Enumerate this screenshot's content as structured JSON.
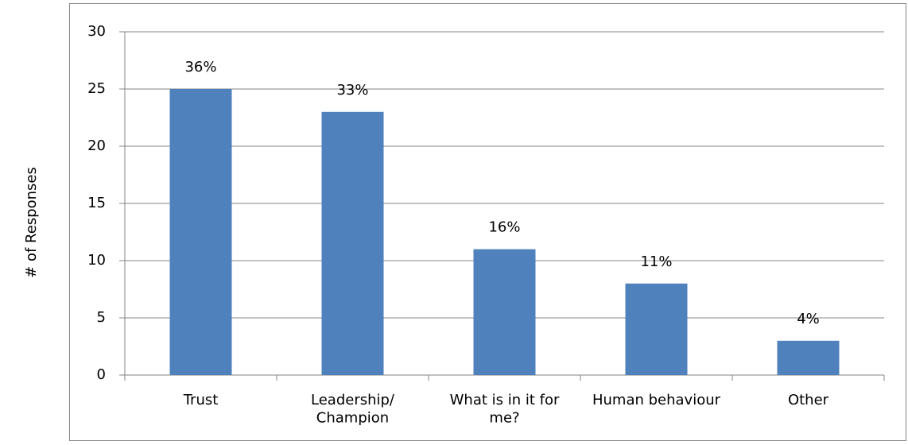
{
  "chart_data": {
    "type": "bar",
    "y_label": "# of Responses",
    "categories": [
      "Trust",
      "Leadership/\nChampion",
      "What is in it for\nme?",
      "Human behaviour",
      "Other"
    ],
    "values": [
      25,
      23,
      11,
      8,
      3
    ],
    "annotations": [
      "36%",
      "33%",
      "16%",
      "11%",
      "4%"
    ],
    "color": "#4f81bd",
    "ylim": [
      0,
      30
    ],
    "yticks": [
      0,
      5,
      10,
      15,
      20,
      25,
      30
    ],
    "grid": true
  }
}
